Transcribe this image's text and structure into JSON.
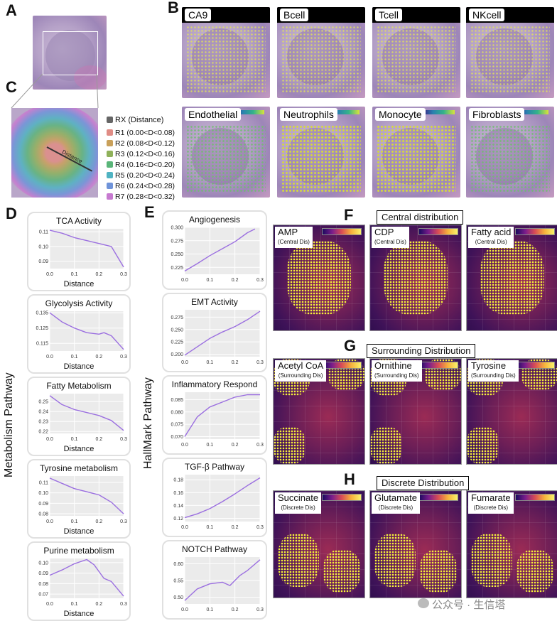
{
  "panel_labels": {
    "A": "A",
    "B": "B",
    "C": "C",
    "D": "D",
    "E": "E",
    "F": "F",
    "G": "G",
    "H": "H"
  },
  "panel_b": {
    "row1": [
      "CA9",
      "Bcell",
      "Tcell",
      "NKcell"
    ],
    "row2": [
      "Endothelial",
      "Neutrophils",
      "Monocyte",
      "Fibroblasts"
    ]
  },
  "panel_c": {
    "legend_title": "RX (Distance)",
    "regions": [
      {
        "label": "R1 (0.00<D<0.08)",
        "color": "#e08c85"
      },
      {
        "label": "R2 (0.08<D<0.12)",
        "color": "#c9a05a"
      },
      {
        "label": "R3 (0.12<D<0.16)",
        "color": "#8fb15a"
      },
      {
        "label": "R4 (0.16<D<0.20)",
        "color": "#5ab579"
      },
      {
        "label": "R5 (0.20<D<0.24)",
        "color": "#4fb3c2"
      },
      {
        "label": "R6 (0.24<D<0.28)",
        "color": "#6f93d9"
      },
      {
        "label": "R7 (0.28<D<0.32)",
        "color": "#c77ad0"
      }
    ],
    "arrow_text": "Distance"
  },
  "panel_d": {
    "side_label": "Metabolism Pathway",
    "plots": [
      {
        "title": "TCA Activity",
        "xlabel": "Distance",
        "yticks": [
          "0.11",
          "0.10",
          "0.09"
        ],
        "xticks": [
          "0.0",
          "0.1",
          "0.2",
          "0.3"
        ]
      },
      {
        "title": "Glycolysis Activity",
        "xlabel": "Distance",
        "yticks": [
          "0.135",
          "0.125",
          "0.115"
        ],
        "xticks": [
          "0.0",
          "0.1",
          "0.2",
          "0.3"
        ]
      },
      {
        "title": "Fatty Metabolism",
        "xlabel": "Distance",
        "yticks": [
          "0.25",
          "0.24",
          "0.23",
          "0.22"
        ],
        "xticks": [
          "0.0",
          "0.1",
          "0.2",
          "0.3"
        ]
      },
      {
        "title": "Tyrosine metabolism",
        "xlabel": "Distance",
        "yticks": [
          "0.11",
          "0.10",
          "0.09",
          "0.08"
        ],
        "xticks": [
          "0.0",
          "0.1",
          "0.2",
          "0.3"
        ]
      },
      {
        "title": "Purine metabolism",
        "xlabel": "Distance",
        "yticks": [
          "0.10",
          "0.09",
          "0.08",
          "0.07"
        ],
        "xticks": [
          "0.0",
          "0.1",
          "0.2",
          "0.3"
        ]
      }
    ]
  },
  "panel_e": {
    "side_label": "HallMark Pathway",
    "plots": [
      {
        "title": "Angiogenesis",
        "xlabel": "",
        "yticks": [
          "0.300",
          "0.275",
          "0.250",
          "0.225"
        ],
        "xticks": [
          "0.0",
          "0.1",
          "0.2",
          "0.3"
        ]
      },
      {
        "title": "EMT Activity",
        "xlabel": "",
        "yticks": [
          "0.275",
          "0.250",
          "0.225",
          "0.200"
        ],
        "xticks": [
          "0.0",
          "0.1",
          "0.2",
          "0.3"
        ]
      },
      {
        "title": "Inflammatory Respond",
        "xlabel": "",
        "yticks": [
          "0.085",
          "0.080",
          "0.075",
          "0.070"
        ],
        "xticks": [
          "0.0",
          "0.1",
          "0.2",
          "0.3"
        ]
      },
      {
        "title": "TGF-β Pathway",
        "xlabel": "",
        "yticks": [
          "0.18",
          "0.16",
          "0.14",
          "0.12"
        ],
        "xticks": [
          "0.0",
          "0.1",
          "0.2",
          "0.3"
        ]
      },
      {
        "title": "NOTCH Pathway",
        "xlabel": "",
        "yticks": [
          "0.60",
          "0.55",
          "0.50"
        ],
        "xticks": [
          "0.0",
          "0.1",
          "0.2",
          "0.3"
        ]
      }
    ]
  },
  "panel_f": {
    "section": "Central distribution",
    "maps": [
      {
        "name": "AMP",
        "sub": "(Central Dis)"
      },
      {
        "name": "CDP",
        "sub": "(Central Dis)"
      },
      {
        "name": "Fatty acid",
        "sub": "(Central Dis)"
      }
    ]
  },
  "panel_g": {
    "section": "Surrounding Distribution",
    "maps": [
      {
        "name": "Acetyl CoA",
        "sub": "(Surrounding Dis)"
      },
      {
        "name": "Ornithine",
        "sub": "(Surrounding Dis)"
      },
      {
        "name": "Tyrosine",
        "sub": "(Surrounding Dis)"
      }
    ]
  },
  "panel_h": {
    "section": "Discrete Distribution",
    "maps": [
      {
        "name": "Succinate",
        "sub": "(Discrete Dis)"
      },
      {
        "name": "Glutamate",
        "sub": "(Discrete Dis)"
      },
      {
        "name": "Fumarate",
        "sub": "(Discrete Dis)"
      }
    ]
  },
  "watermark": "公众号 · 生信塔",
  "chart_data": [
    {
      "type": "line",
      "title": "TCA Activity",
      "xlabel": "Distance",
      "x": [
        0.0,
        0.05,
        0.1,
        0.15,
        0.2,
        0.25,
        0.3
      ],
      "values": [
        0.111,
        0.109,
        0.106,
        0.104,
        0.102,
        0.1,
        0.086
      ],
      "ylim": [
        0.085,
        0.112
      ]
    },
    {
      "type": "line",
      "title": "Glycolysis Activity",
      "xlabel": "Distance",
      "x": [
        0.0,
        0.05,
        0.1,
        0.15,
        0.2,
        0.22,
        0.25,
        0.3
      ],
      "values": [
        0.135,
        0.129,
        0.125,
        0.122,
        0.121,
        0.122,
        0.12,
        0.111
      ],
      "ylim": [
        0.11,
        0.136
      ]
    },
    {
      "type": "line",
      "title": "Fatty Metabolism",
      "xlabel": "Distance",
      "x": [
        0.0,
        0.05,
        0.1,
        0.15,
        0.2,
        0.25,
        0.3
      ],
      "values": [
        0.256,
        0.247,
        0.242,
        0.239,
        0.236,
        0.231,
        0.221
      ],
      "ylim": [
        0.218,
        0.258
      ]
    },
    {
      "type": "line",
      "title": "Tyrosine metabolism",
      "xlabel": "Distance",
      "x": [
        0.0,
        0.05,
        0.1,
        0.15,
        0.2,
        0.25,
        0.3
      ],
      "values": [
        0.114,
        0.109,
        0.104,
        0.101,
        0.098,
        0.091,
        0.08
      ],
      "ylim": [
        0.078,
        0.116
      ]
    },
    {
      "type": "line",
      "title": "Purine metabolism",
      "xlabel": "Distance",
      "x": [
        0.0,
        0.05,
        0.1,
        0.15,
        0.18,
        0.22,
        0.25,
        0.3
      ],
      "values": [
        0.088,
        0.093,
        0.099,
        0.103,
        0.098,
        0.085,
        0.082,
        0.068
      ],
      "ylim": [
        0.066,
        0.104
      ]
    },
    {
      "type": "line",
      "title": "Angiogenesis",
      "xlabel": "",
      "x": [
        0.0,
        0.05,
        0.1,
        0.15,
        0.2,
        0.25,
        0.28
      ],
      "values": [
        0.218,
        0.232,
        0.247,
        0.26,
        0.273,
        0.29,
        0.297
      ],
      "ylim": [
        0.212,
        0.3
      ]
    },
    {
      "type": "line",
      "title": "EMT Activity",
      "xlabel": "",
      "x": [
        0.0,
        0.05,
        0.1,
        0.15,
        0.2,
        0.25,
        0.3
      ],
      "values": [
        0.198,
        0.215,
        0.232,
        0.245,
        0.256,
        0.27,
        0.287
      ],
      "ylim": [
        0.195,
        0.29
      ]
    },
    {
      "type": "line",
      "title": "Inflammatory Respond",
      "xlabel": "",
      "x": [
        0.0,
        0.05,
        0.1,
        0.15,
        0.2,
        0.25,
        0.3
      ],
      "values": [
        0.07,
        0.078,
        0.082,
        0.084,
        0.086,
        0.087,
        0.087
      ],
      "ylim": [
        0.069,
        0.088
      ]
    },
    {
      "type": "line",
      "title": "TGF-β Pathway",
      "xlabel": "",
      "x": [
        0.0,
        0.05,
        0.1,
        0.15,
        0.2,
        0.25,
        0.3
      ],
      "values": [
        0.121,
        0.127,
        0.135,
        0.146,
        0.158,
        0.171,
        0.183
      ],
      "ylim": [
        0.115,
        0.188
      ]
    },
    {
      "type": "line",
      "title": "NOTCH Pathway",
      "xlabel": "",
      "x": [
        0.0,
        0.05,
        0.1,
        0.15,
        0.18,
        0.22,
        0.25,
        0.3
      ],
      "values": [
        0.49,
        0.525,
        0.54,
        0.545,
        0.535,
        0.565,
        0.58,
        0.612
      ],
      "ylim": [
        0.48,
        0.62
      ]
    }
  ]
}
